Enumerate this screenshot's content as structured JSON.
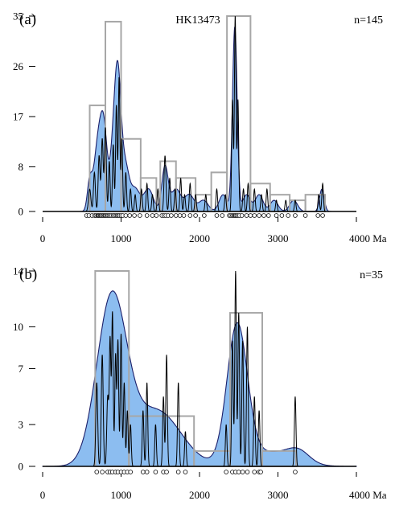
{
  "colors": {
    "kde_fill": "#8cbdf0",
    "kde_stroke": "#1b1f6a",
    "histogram": "#a7a7a7",
    "pdp": "#000000",
    "axis": "#000000"
  },
  "chart_data": [
    {
      "type": "area",
      "panel_label": "(a)",
      "title": "HK13473",
      "count_label": "n=145",
      "x_unit_label": "Ma",
      "xlim": [
        0,
        4000
      ],
      "x_ticks": [
        0,
        1000,
        2000,
        3000,
        4000
      ],
      "x_tick_labels": [
        "0",
        "1000",
        "2000",
        "3000",
        "4000 Ma"
      ],
      "ylim": [
        0,
        35
      ],
      "y_ticks": [
        0,
        8,
        17,
        26,
        35
      ],
      "y_tick_labels": [
        "0",
        "8",
        "17",
        "26",
        "35"
      ],
      "grid": false,
      "histogram": {
        "bin_width": 200,
        "bins": [
          {
            "x0": 600,
            "x1": 800,
            "count": 19
          },
          {
            "x0": 800,
            "x1": 1000,
            "count": 34
          },
          {
            "x0": 1000,
            "x1": 1250,
            "count": 13
          },
          {
            "x0": 1250,
            "x1": 1450,
            "count": 6
          },
          {
            "x0": 1500,
            "x1": 1700,
            "count": 9
          },
          {
            "x0": 1700,
            "x1": 1950,
            "count": 6
          },
          {
            "x0": 1950,
            "x1": 2150,
            "count": 3
          },
          {
            "x0": 2150,
            "x1": 2350,
            "count": 7
          },
          {
            "x0": 2350,
            "x1": 2650,
            "count": 35
          },
          {
            "x0": 2650,
            "x1": 2900,
            "count": 5
          },
          {
            "x0": 2900,
            "x1": 3150,
            "count": 3
          },
          {
            "x0": 3150,
            "x1": 3350,
            "count": 2
          },
          {
            "x0": 3350,
            "x1": 3600,
            "count": 3
          }
        ]
      },
      "kde_peaks": [
        {
          "center": 600,
          "height": 5,
          "width": 30
        },
        {
          "center": 700,
          "height": 11,
          "width": 50
        },
        {
          "center": 780,
          "height": 14,
          "width": 45
        },
        {
          "center": 900,
          "height": 10,
          "width": 40
        },
        {
          "center": 960,
          "height": 22,
          "width": 40
        },
        {
          "center": 1050,
          "height": 8,
          "width": 50
        },
        {
          "center": 1180,
          "height": 4,
          "width": 60
        },
        {
          "center": 1350,
          "height": 4,
          "width": 60
        },
        {
          "center": 1560,
          "height": 8,
          "width": 40
        },
        {
          "center": 1700,
          "height": 4,
          "width": 60
        },
        {
          "center": 1870,
          "height": 3,
          "width": 60
        },
        {
          "center": 2050,
          "height": 2,
          "width": 60
        },
        {
          "center": 2300,
          "height": 3,
          "width": 50
        },
        {
          "center": 2450,
          "height": 33,
          "width": 30
        },
        {
          "center": 2600,
          "height": 3,
          "width": 50
        },
        {
          "center": 2760,
          "height": 3,
          "width": 50
        },
        {
          "center": 2950,
          "height": 2,
          "width": 50
        },
        {
          "center": 3200,
          "height": 2,
          "width": 50
        },
        {
          "center": 3560,
          "height": 4,
          "width": 30
        }
      ],
      "pdp_peaks": [
        {
          "center": 600,
          "height": 4,
          "width": 15
        },
        {
          "center": 660,
          "height": 7,
          "width": 12
        },
        {
          "center": 720,
          "height": 10,
          "width": 12
        },
        {
          "center": 760,
          "height": 13,
          "width": 12
        },
        {
          "center": 800,
          "height": 15,
          "width": 12
        },
        {
          "center": 850,
          "height": 9,
          "width": 10
        },
        {
          "center": 900,
          "height": 12,
          "width": 10
        },
        {
          "center": 940,
          "height": 19,
          "width": 10
        },
        {
          "center": 975,
          "height": 24,
          "width": 10
        },
        {
          "center": 1010,
          "height": 13,
          "width": 10
        },
        {
          "center": 1060,
          "height": 7,
          "width": 10
        },
        {
          "center": 1120,
          "height": 4,
          "width": 10
        },
        {
          "center": 1180,
          "height": 3,
          "width": 10
        },
        {
          "center": 1260,
          "height": 4,
          "width": 10
        },
        {
          "center": 1330,
          "height": 5,
          "width": 10
        },
        {
          "center": 1400,
          "height": 3,
          "width": 10
        },
        {
          "center": 1470,
          "height": 4,
          "width": 10
        },
        {
          "center": 1560,
          "height": 10,
          "width": 12
        },
        {
          "center": 1620,
          "height": 6,
          "width": 10
        },
        {
          "center": 1690,
          "height": 4,
          "width": 10
        },
        {
          "center": 1760,
          "height": 6,
          "width": 10
        },
        {
          "center": 1810,
          "height": 3,
          "width": 10
        },
        {
          "center": 1880,
          "height": 5,
          "width": 10
        },
        {
          "center": 1950,
          "height": 3,
          "width": 10
        },
        {
          "center": 2080,
          "height": 3,
          "width": 10
        },
        {
          "center": 2220,
          "height": 4,
          "width": 10
        },
        {
          "center": 2330,
          "height": 3,
          "width": 10
        },
        {
          "center": 2420,
          "height": 20,
          "width": 10
        },
        {
          "center": 2455,
          "height": 35,
          "width": 10
        },
        {
          "center": 2490,
          "height": 20,
          "width": 10
        },
        {
          "center": 2560,
          "height": 4,
          "width": 10
        },
        {
          "center": 2620,
          "height": 5,
          "width": 10
        },
        {
          "center": 2700,
          "height": 4,
          "width": 10
        },
        {
          "center": 2790,
          "height": 3,
          "width": 10
        },
        {
          "center": 2860,
          "height": 4,
          "width": 10
        },
        {
          "center": 2980,
          "height": 2,
          "width": 10
        },
        {
          "center": 3100,
          "height": 2,
          "width": 10
        },
        {
          "center": 3220,
          "height": 2,
          "width": 10
        },
        {
          "center": 3520,
          "height": 3,
          "width": 10
        },
        {
          "center": 3570,
          "height": 5,
          "width": 10
        }
      ],
      "sample_ages": [
        560,
        590,
        630,
        665,
        680,
        700,
        710,
        720,
        735,
        745,
        760,
        775,
        790,
        800,
        815,
        830,
        845,
        860,
        880,
        900,
        915,
        935,
        950,
        965,
        980,
        1000,
        1020,
        1060,
        1110,
        1170,
        1240,
        1330,
        1400,
        1450,
        1520,
        1545,
        1570,
        1600,
        1640,
        1700,
        1750,
        1800,
        1880,
        1950,
        2060,
        2220,
        2290,
        2380,
        2400,
        2420,
        2435,
        2450,
        2460,
        2475,
        2490,
        2510,
        2540,
        2600,
        2650,
        2700,
        2760,
        2820,
        2880,
        2980,
        3050,
        3130,
        3220,
        3350,
        3510,
        3570
      ]
    },
    {
      "type": "area",
      "panel_label": "(b)",
      "title": "",
      "count_label": "n=35",
      "x_unit_label": "Ma",
      "xlim": [
        0,
        4000
      ],
      "x_ticks": [
        0,
        1000,
        2000,
        3000,
        4000
      ],
      "x_tick_labels": [
        "0",
        "1000",
        "2000",
        "3000",
        "4000 Ma"
      ],
      "ylim": [
        0,
        14
      ],
      "y_ticks": [
        0,
        3,
        7,
        10,
        14
      ],
      "y_tick_labels": [
        "0",
        "3",
        "7",
        "10",
        "14"
      ],
      "grid": false,
      "histogram": {
        "bins": [
          {
            "x0": 670,
            "x1": 1100,
            "count": 14
          },
          {
            "x0": 1100,
            "x1": 1930,
            "count": 3.6
          },
          {
            "x0": 1930,
            "x1": 2390,
            "count": 1.1
          },
          {
            "x0": 2390,
            "x1": 2800,
            "count": 11
          },
          {
            "x0": 2800,
            "x1": 3230,
            "count": 1.1
          }
        ]
      },
      "kde_peaks": [
        {
          "center": 880,
          "height": 11.8,
          "width": 190
        },
        {
          "center": 1450,
          "height": 4.0,
          "width": 310
        },
        {
          "center": 2480,
          "height": 9.9,
          "width": 130
        },
        {
          "center": 2900,
          "height": 1.0,
          "width": 300
        },
        {
          "center": 3260,
          "height": 0.8,
          "width": 140
        }
      ],
      "pdp_peaks": [
        {
          "center": 690,
          "height": 6,
          "width": 12
        },
        {
          "center": 760,
          "height": 8,
          "width": 12
        },
        {
          "center": 830,
          "height": 5,
          "width": 12
        },
        {
          "center": 860,
          "height": 9,
          "width": 10
        },
        {
          "center": 890,
          "height": 11,
          "width": 10
        },
        {
          "center": 930,
          "height": 8,
          "width": 10
        },
        {
          "center": 960,
          "height": 9,
          "width": 10
        },
        {
          "center": 1000,
          "height": 9.5,
          "width": 10
        },
        {
          "center": 1040,
          "height": 6,
          "width": 10
        },
        {
          "center": 1080,
          "height": 4,
          "width": 10
        },
        {
          "center": 1120,
          "height": 3,
          "width": 10
        },
        {
          "center": 1280,
          "height": 4,
          "width": 10
        },
        {
          "center": 1330,
          "height": 6,
          "width": 10
        },
        {
          "center": 1440,
          "height": 3,
          "width": 10
        },
        {
          "center": 1540,
          "height": 5,
          "width": 10
        },
        {
          "center": 1580,
          "height": 8,
          "width": 10
        },
        {
          "center": 1730,
          "height": 6,
          "width": 10
        },
        {
          "center": 1820,
          "height": 2.5,
          "width": 10
        },
        {
          "center": 2340,
          "height": 3,
          "width": 10
        },
        {
          "center": 2420,
          "height": 9,
          "width": 10
        },
        {
          "center": 2460,
          "height": 14,
          "width": 10
        },
        {
          "center": 2500,
          "height": 11,
          "width": 10
        },
        {
          "center": 2550,
          "height": 9,
          "width": 10
        },
        {
          "center": 2610,
          "height": 10,
          "width": 10
        },
        {
          "center": 2700,
          "height": 5,
          "width": 10
        },
        {
          "center": 2760,
          "height": 4,
          "width": 10
        },
        {
          "center": 3220,
          "height": 5,
          "width": 10
        }
      ],
      "sample_ages": [
        690,
        760,
        830,
        860,
        890,
        930,
        960,
        1000,
        1040,
        1080,
        1120,
        1280,
        1330,
        1440,
        1540,
        1580,
        1730,
        1820,
        2340,
        2420,
        2460,
        2500,
        2550,
        2610,
        2700,
        2760,
        2780,
        3220
      ]
    }
  ]
}
